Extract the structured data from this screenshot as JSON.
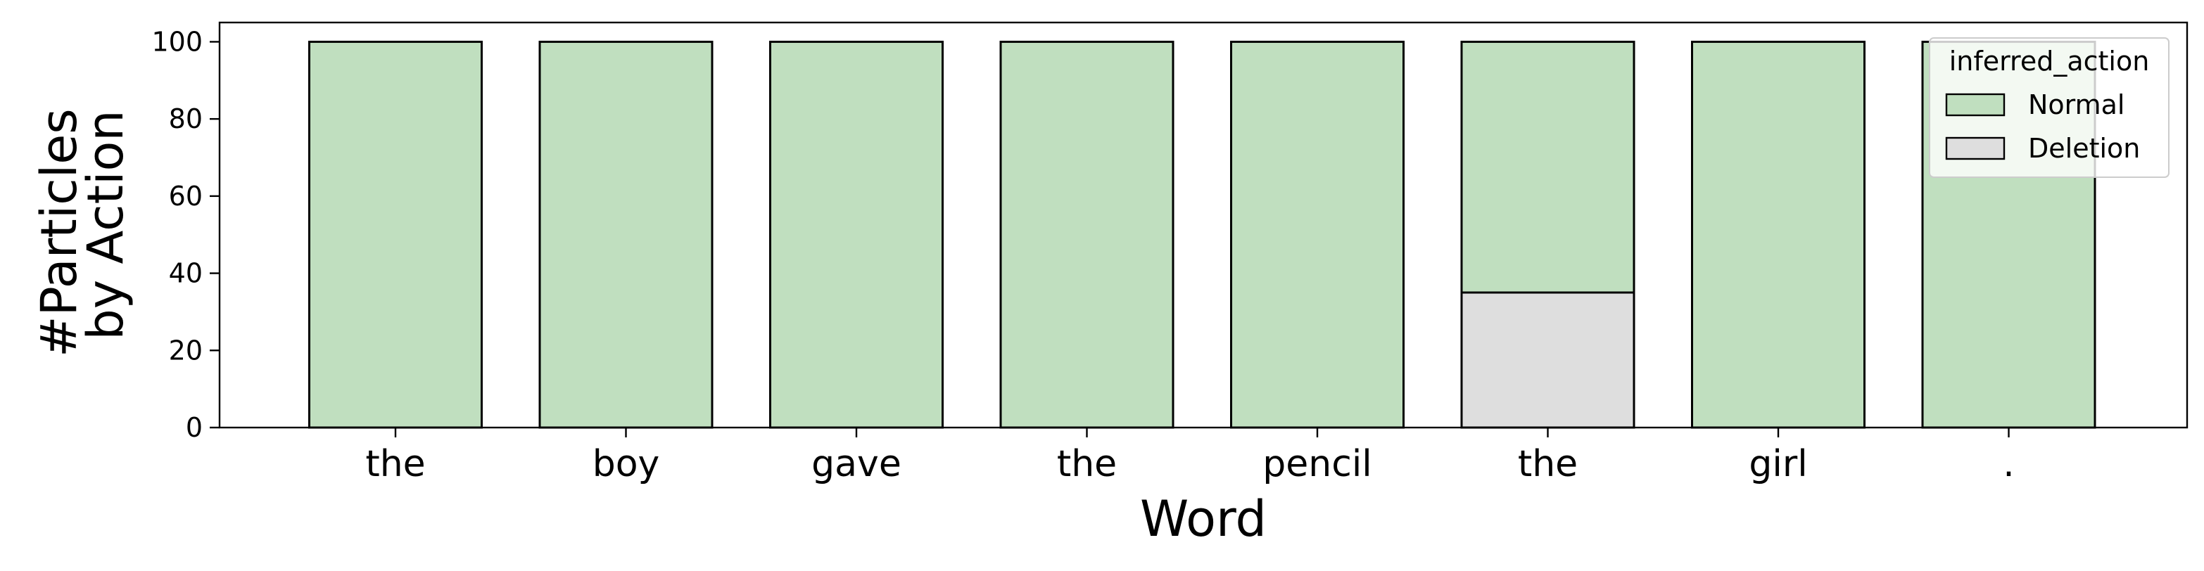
{
  "chart_data": {
    "type": "bar",
    "stacked": true,
    "categories": [
      "the",
      "boy",
      "gave",
      "the",
      "pencil",
      "the",
      "girl",
      "."
    ],
    "series": [
      {
        "name": "Deletion",
        "values": [
          0,
          0,
          0,
          0,
          0,
          35,
          0,
          0
        ],
        "color": "#dedede"
      },
      {
        "name": "Normal",
        "values": [
          100,
          100,
          100,
          100,
          100,
          65,
          100,
          100
        ],
        "color": "#c0dfbf"
      }
    ],
    "legend_order": [
      "Normal",
      "Deletion"
    ],
    "xlabel": "Word",
    "ylabel_lines": [
      "#Particles",
      "by Action"
    ],
    "ylim": [
      0,
      105
    ],
    "yticks": [
      0,
      20,
      40,
      60,
      80,
      100
    ],
    "grid": false,
    "legend": {
      "title": "inferred_action",
      "position": "top-right"
    }
  }
}
